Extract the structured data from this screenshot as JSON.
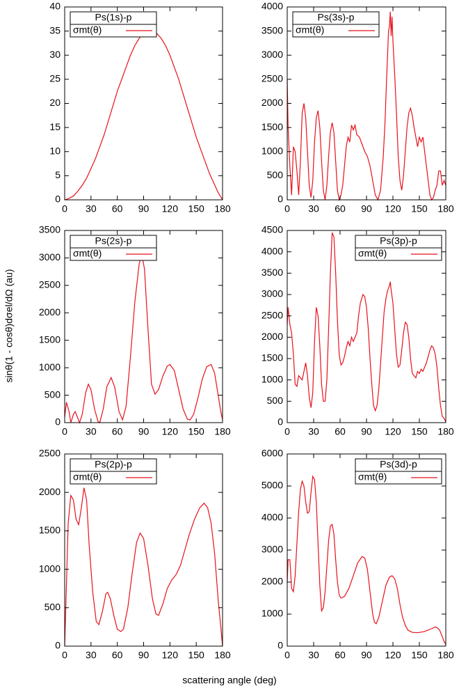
{
  "x_label": "scattering angle (deg)",
  "y_label": "sinθ(1 - cosθ)dσel/dΩ (au)",
  "chart_data": [
    {
      "type": "line",
      "legend_title": "Ps(1s)-p",
      "legend": "upper left",
      "xlim": [
        0,
        180
      ],
      "xticks": [
        0,
        30,
        60,
        90,
        120,
        150,
        180
      ],
      "ylim": [
        0,
        40
      ],
      "yticks": [
        0,
        5,
        10,
        15,
        20,
        25,
        30,
        35,
        40
      ],
      "x": [
        0,
        5,
        10,
        15,
        20,
        25,
        30,
        35,
        40,
        45,
        50,
        55,
        60,
        65,
        70,
        75,
        80,
        85,
        90,
        95,
        100,
        105,
        110,
        115,
        120,
        125,
        130,
        135,
        140,
        145,
        150,
        155,
        160,
        165,
        170,
        175,
        180
      ],
      "series": [
        {
          "name": "σmt(θ)",
          "color": "#e8101a",
          "values": [
            0,
            0.3,
            0.8,
            1.8,
            3,
            4.5,
            6.5,
            8.5,
            11,
            13.5,
            16.5,
            19.5,
            22.5,
            25,
            27.5,
            30,
            32,
            33.5,
            34.5,
            35,
            35,
            34.5,
            33.5,
            32,
            30,
            27.5,
            25,
            22,
            19,
            16,
            13,
            10.5,
            8,
            5.5,
            3.5,
            1.5,
            0
          ]
        }
      ]
    },
    {
      "type": "line",
      "legend_title": "Ps(3s)-p",
      "legend": "upper left",
      "xlim": [
        0,
        180
      ],
      "xticks": [
        0,
        30,
        60,
        90,
        120,
        150,
        180
      ],
      "ylim": [
        0,
        4000
      ],
      "yticks": [
        0,
        500,
        1000,
        1500,
        2000,
        2500,
        3000,
        3500,
        4000
      ],
      "x": [
        0,
        1,
        3,
        5,
        7,
        9,
        11,
        13,
        15,
        17,
        19,
        21,
        23,
        25,
        27,
        29,
        31,
        33,
        35,
        37,
        39,
        41,
        43,
        45,
        47,
        49,
        51,
        53,
        55,
        57,
        59,
        61,
        63,
        65,
        67,
        69,
        71,
        73,
        75,
        77,
        79,
        82,
        85,
        88,
        91,
        94,
        97,
        100,
        103,
        106,
        109,
        111,
        113,
        115,
        116,
        117,
        118,
        119,
        120,
        122,
        124,
        126,
        128,
        130,
        132,
        134,
        136,
        138,
        140,
        142,
        144,
        146,
        148,
        150,
        152,
        154,
        156,
        158,
        160,
        162,
        164,
        166,
        168,
        170,
        172,
        174,
        176,
        178,
        180
      ],
      "series": [
        {
          "name": "σmt(θ)",
          "color": "#e8101a",
          "values": [
            2500,
            1500,
            700,
            100,
            1100,
            1000,
            600,
            100,
            800,
            1800,
            2000,
            1700,
            1000,
            300,
            50,
            400,
            1200,
            1700,
            1850,
            1500,
            800,
            200,
            0,
            300,
            900,
            1400,
            1600,
            1400,
            800,
            200,
            0,
            100,
            300,
            700,
            1100,
            1300,
            1200,
            1550,
            1450,
            1550,
            1350,
            1300,
            1150,
            1000,
            900,
            700,
            400,
            100,
            0,
            200,
            900,
            1600,
            2600,
            3500,
            3600,
            3900,
            3400,
            3800,
            3300,
            2600,
            1800,
            900,
            400,
            200,
            500,
            1000,
            1500,
            1800,
            1900,
            1750,
            1500,
            1300,
            1100,
            1300,
            1200,
            1300,
            1000,
            700,
            400,
            100,
            0,
            50,
            200,
            300,
            600,
            600,
            300,
            400,
            300
          ]
        }
      ]
    },
    {
      "type": "line",
      "legend_title": "Ps(2s)-p",
      "legend": "upper left",
      "xlim": [
        0,
        180
      ],
      "xticks": [
        0,
        30,
        60,
        90,
        120,
        150,
        180
      ],
      "ylim": [
        0,
        3500
      ],
      "yticks": [
        0,
        500,
        1000,
        1500,
        2000,
        2500,
        3000,
        3500
      ],
      "x": [
        0,
        2,
        5,
        7,
        10,
        12,
        15,
        17,
        20,
        24,
        27,
        30,
        34,
        38,
        40,
        44,
        48,
        53,
        57,
        62,
        66,
        70,
        75,
        80,
        85,
        88,
        91,
        95,
        99,
        103,
        107,
        112,
        117,
        120,
        125,
        130,
        135,
        140,
        143,
        147,
        152,
        157,
        162,
        167,
        171,
        175,
        178,
        180
      ],
      "series": [
        {
          "name": "σmt(θ)",
          "color": "#e8101a",
          "values": [
            100,
            370,
            200,
            0,
            150,
            200,
            80,
            0,
            150,
            550,
            700,
            600,
            250,
            20,
            0,
            250,
            650,
            820,
            650,
            200,
            50,
            300,
            1200,
            2200,
            2900,
            3050,
            2800,
            1700,
            700,
            520,
            600,
            850,
            1030,
            1060,
            950,
            600,
            250,
            60,
            50,
            150,
            450,
            800,
            1020,
            1060,
            900,
            500,
            200,
            50
          ]
        }
      ]
    },
    {
      "type": "line",
      "legend_title": "Ps(3p)-p",
      "legend": "upper right",
      "xlim": [
        0,
        180
      ],
      "xticks": [
        0,
        30,
        60,
        90,
        120,
        150,
        180
      ],
      "ylim": [
        0,
        4500
      ],
      "yticks": [
        0,
        500,
        1000,
        1500,
        2000,
        2500,
        3000,
        3500,
        4000,
        4500
      ],
      "x": [
        0,
        1,
        3,
        5,
        7,
        9,
        11,
        13,
        15,
        17,
        19,
        21,
        23,
        25,
        27,
        29,
        31,
        33,
        35,
        37,
        39,
        41,
        43,
        45,
        47,
        49,
        51,
        53,
        55,
        57,
        59,
        61,
        63,
        65,
        67,
        69,
        71,
        73,
        75,
        77,
        79,
        81,
        83,
        86,
        88,
        90,
        92,
        94,
        96,
        98,
        100,
        102,
        104,
        106,
        108,
        110,
        112,
        114,
        116,
        117,
        118,
        120,
        122,
        124,
        126,
        128,
        130,
        132,
        134,
        136,
        138,
        140,
        142,
        144,
        146,
        148,
        150,
        152,
        154,
        156,
        158,
        160,
        162,
        164,
        166,
        168,
        170,
        172,
        174,
        176,
        178,
        180
      ],
      "series": [
        {
          "name": "σmt(θ)",
          "color": "#e8101a",
          "values": [
            2300,
            2700,
            2300,
            2100,
            1600,
            900,
            850,
            1100,
            1050,
            1000,
            1200,
            1400,
            1100,
            600,
            350,
            700,
            1900,
            2700,
            2500,
            1800,
            900,
            500,
            500,
            1000,
            2200,
            3500,
            4450,
            4350,
            3500,
            2400,
            1600,
            1350,
            1400,
            1550,
            1750,
            1900,
            1800,
            2000,
            1900,
            2000,
            2100,
            2500,
            2800,
            3000,
            2950,
            2700,
            2200,
            1500,
            900,
            400,
            280,
            400,
            800,
            1400,
            2000,
            2600,
            2900,
            3100,
            3200,
            3300,
            3100,
            2800,
            2200,
            1600,
            1300,
            1350,
            1700,
            2100,
            2350,
            2300,
            2000,
            1500,
            1150,
            1100,
            1050,
            1200,
            1150,
            1250,
            1200,
            1300,
            1400,
            1550,
            1700,
            1800,
            1750,
            1600,
            1300,
            800,
            400,
            150,
            100,
            20
          ]
        }
      ]
    },
    {
      "type": "line",
      "legend_title": "Ps(2p)-p",
      "legend": "upper left",
      "xlim": [
        0,
        180
      ],
      "xticks": [
        0,
        30,
        60,
        90,
        120,
        150,
        180
      ],
      "ylim": [
        0,
        2500
      ],
      "yticks": [
        0,
        500,
        1000,
        1500,
        2000,
        2500
      ],
      "x": [
        0,
        2,
        4,
        7,
        10,
        13,
        16,
        19,
        22,
        25,
        28,
        32,
        36,
        39,
        43,
        47,
        49,
        52,
        56,
        60,
        64,
        67,
        72,
        77,
        82,
        86,
        90,
        95,
        100,
        104,
        107,
        112,
        117,
        122,
        127,
        132,
        137,
        142,
        148,
        154,
        159,
        163,
        167,
        171,
        175,
        178,
        180
      ],
      "series": [
        {
          "name": "σmt(θ)",
          "color": "#e8101a",
          "values": [
            0,
            800,
            1600,
            1960,
            1900,
            1650,
            1580,
            1800,
            2060,
            1900,
            1300,
            700,
            320,
            280,
            450,
            680,
            700,
            620,
            400,
            220,
            190,
            220,
            500,
            950,
            1350,
            1470,
            1400,
            1050,
            620,
            420,
            400,
            550,
            750,
            860,
            930,
            1050,
            1250,
            1450,
            1650,
            1800,
            1860,
            1800,
            1600,
            1200,
            600,
            250,
            0
          ]
        }
      ]
    },
    {
      "type": "line",
      "legend_title": "Ps(3d)-p",
      "legend": "upper right",
      "xlim": [
        0,
        180
      ],
      "xticks": [
        0,
        30,
        60,
        90,
        120,
        150,
        180
      ],
      "ylim": [
        0,
        6000
      ],
      "yticks": [
        0,
        1000,
        2000,
        3000,
        4000,
        5000,
        6000
      ],
      "x": [
        0,
        1,
        3,
        5,
        7,
        9,
        11,
        13,
        15,
        17,
        19,
        21,
        23,
        25,
        27,
        29,
        31,
        33,
        35,
        37,
        39,
        41,
        43,
        45,
        47,
        49,
        51,
        53,
        55,
        57,
        59,
        61,
        65,
        70,
        75,
        80,
        85,
        88,
        91,
        94,
        97,
        99,
        101,
        104,
        108,
        112,
        116,
        119,
        122,
        125,
        128,
        131,
        134,
        137,
        142,
        148,
        155,
        160,
        165,
        168,
        170,
        173,
        176,
        178,
        180
      ],
      "series": [
        {
          "name": "σmt(θ)",
          "color": "#e8101a",
          "values": [
            2000,
            2700,
            2700,
            1800,
            1700,
            2200,
            3200,
            4200,
            4900,
            5150,
            5000,
            4500,
            4150,
            4200,
            4800,
            5300,
            5200,
            4500,
            3200,
            1900,
            1100,
            1200,
            1700,
            2500,
            3300,
            3750,
            3800,
            3500,
            2700,
            2000,
            1600,
            1500,
            1550,
            1800,
            2200,
            2600,
            2800,
            2750,
            2400,
            1700,
            1000,
            750,
            700,
            900,
            1400,
            1900,
            2150,
            2200,
            2100,
            1800,
            1300,
            900,
            650,
            500,
            430,
            420,
            450,
            500,
            560,
            600,
            580,
            500,
            300,
            150,
            50
          ]
        }
      ]
    }
  ]
}
